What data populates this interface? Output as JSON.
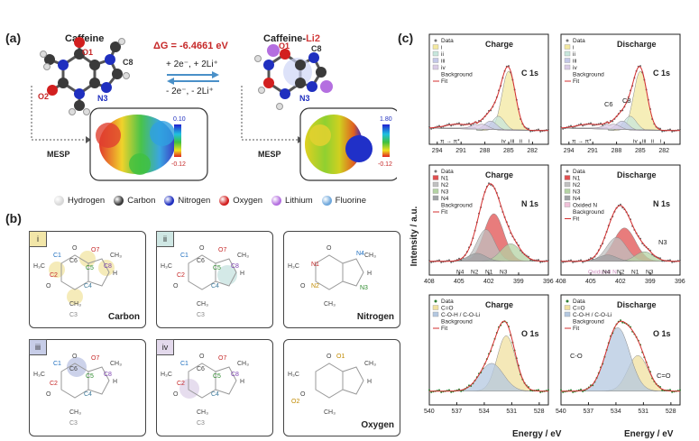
{
  "panels": {
    "a": "(a)",
    "b": "(b)",
    "c": "(c)"
  },
  "a": {
    "left_title": "Caffeine",
    "right_title_main": "Caffeine-",
    "right_title_suffix": "Li2",
    "delta_g": "ΔG = -6.4661 eV",
    "reaction_fwd": "+ 2e⁻, + 2Li⁺",
    "reaction_rev": "- 2e⁻, - 2Li⁺",
    "atom_labels": {
      "o1": "O1",
      "o2": "O2",
      "n3": "N3",
      "c8": "C8"
    },
    "right_atom_labels": {
      "o1": "O1",
      "c8": "C8",
      "n3": "N3"
    },
    "mesp_label": "MESP",
    "left_scale": {
      "max": "0.10",
      "min": "-0.12"
    },
    "right_scale": {
      "max": "1.80",
      "min": "-0.12"
    }
  },
  "legend": [
    {
      "label": "Hydrogen",
      "color": "#d8d8d8"
    },
    {
      "label": "Carbon",
      "color": "#3a3a3a"
    },
    {
      "label": "Nitrogen",
      "color": "#1f2fbf"
    },
    {
      "label": "Oxygen",
      "color": "#d21f1f"
    },
    {
      "label": "Lithium",
      "color": "#b46fe0"
    },
    {
      "label": "Fluorine",
      "color": "#6fa8dc"
    }
  ],
  "b": {
    "boxes": [
      {
        "tag": "i",
        "tag_color": "#f2e6a8",
        "caption": "Carbon"
      },
      {
        "tag": "ii",
        "tag_color": "#cfe7e4",
        "caption": ""
      },
      {
        "tag": "",
        "tag_color": "",
        "caption": "Nitrogen"
      },
      {
        "tag": "iii",
        "tag_color": "#c7cde8",
        "caption": ""
      },
      {
        "tag": "iv",
        "tag_color": "#e3d9ec",
        "caption": ""
      },
      {
        "tag": "",
        "tag_color": "",
        "caption": "Oxygen"
      }
    ],
    "carbon_labels": [
      "C1",
      "C2",
      "C4",
      "C5",
      "C6",
      "C8",
      "C3",
      "C7"
    ],
    "carbon_labels_o7": "O7",
    "nitrogen_labels": {
      "n1": "N1",
      "n2": "N2",
      "n3": "N3",
      "n4": "N4"
    },
    "oxygen_labels": {
      "o1": "O1",
      "o2": "O2"
    },
    "struct_text": {
      "o": "O",
      "h3c": "H₃C",
      "ch3": "CH₃",
      "n": "N",
      "h": "H"
    }
  },
  "c": {
    "y_label": "Intensity / a.u.",
    "x_label": "Energy / eV",
    "chart_data": [
      {
        "type": "line",
        "title": "Charge",
        "element": "C 1s",
        "xlim": [
          295,
          280
        ],
        "xticks": [
          "294",
          "291",
          "288",
          "285",
          "282"
        ],
        "legend": [
          "Data",
          "i",
          "ii",
          "iii",
          "iv",
          "Background",
          "Fit"
        ],
        "peak_labels": [
          "π → π*",
          "iv",
          "iii",
          "ii",
          "i"
        ]
      },
      {
        "type": "line",
        "title": "Discharge",
        "element": "C 1s",
        "xlim": [
          295,
          280
        ],
        "xticks": [
          "294",
          "291",
          "288",
          "285",
          "282"
        ],
        "legend": [
          "Data",
          "i",
          "ii",
          "iii",
          "iv",
          "Background",
          "Fit"
        ],
        "peak_labels": [
          "π → π*",
          "iv",
          "iii",
          "ii",
          "i"
        ],
        "annotations": [
          "C6",
          "C8"
        ]
      },
      {
        "type": "line",
        "title": "Charge",
        "element": "N 1s",
        "xlim": [
          408,
          396
        ],
        "xticks": [
          "408",
          "405",
          "402",
          "399",
          "396"
        ],
        "legend": [
          "Data",
          "N1",
          "N2",
          "N3",
          "N4",
          "Background",
          "Fit"
        ],
        "peak_labels": [
          "N4",
          "N2",
          "N1",
          "N3"
        ]
      },
      {
        "type": "line",
        "title": "Discharge",
        "element": "N 1s",
        "xlim": [
          408,
          396
        ],
        "xticks": [
          "408",
          "405",
          "402",
          "399",
          "396"
        ],
        "legend": [
          "Data",
          "N1",
          "N2",
          "N3",
          "N4",
          "Oxided N",
          "Background",
          "Fit"
        ],
        "peak_labels": [
          "Oxidized N",
          "N4",
          "N2",
          "N1",
          "N3"
        ],
        "annotations": [
          "N3"
        ]
      },
      {
        "type": "line",
        "title": "Charge",
        "element": "O 1s",
        "xlim": [
          540,
          527
        ],
        "xticks": [
          "540",
          "537",
          "534",
          "531",
          "528"
        ],
        "legend": [
          "Data",
          "C=O",
          "C-O-H / C-O-Li",
          "Background",
          "Fit"
        ]
      },
      {
        "type": "line",
        "title": "Discharge",
        "element": "O 1s",
        "xlim": [
          540,
          527
        ],
        "xticks": [
          "540",
          "537",
          "534",
          "531",
          "528"
        ],
        "legend": [
          "Data",
          "C=O",
          "C-O-H / C-O-Li",
          "Background",
          "Fit"
        ],
        "annotations": [
          "C-O",
          "C=O"
        ]
      }
    ]
  }
}
